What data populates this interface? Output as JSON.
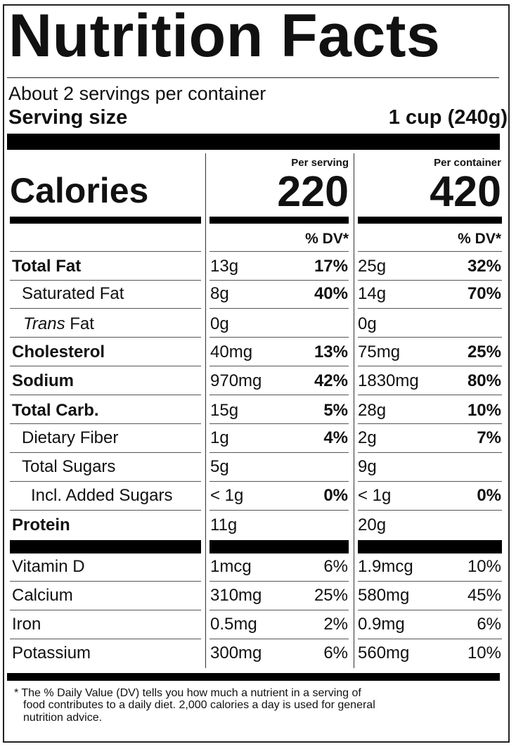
{
  "title": "Nutrition Facts",
  "servings_per_container": "About 2 servings per container",
  "serving_size_label": "Serving size",
  "serving_size_value": "1 cup (240g)",
  "calories_label": "Calories",
  "per_serving_label": "Per serving",
  "per_container_label": "Per container",
  "calories_per_serving": "220",
  "calories_per_container": "420",
  "dv_header": "% DV*",
  "nutrients": [
    {
      "name": "Total Fat",
      "bold": true,
      "serving_amt": "13g",
      "serving_dv": "17%",
      "container_amt": "25g",
      "container_dv": "32%"
    },
    {
      "name": "Saturated Fat",
      "serving_amt": "8g",
      "serving_dv": "40%",
      "container_amt": "14g",
      "container_dv": "70%"
    },
    {
      "name_italic": "Trans",
      "name_rest": " Fat",
      "serving_amt": "0g",
      "serving_dv": "",
      "container_amt": "0g",
      "container_dv": ""
    },
    {
      "name": "Cholesterol",
      "bold": true,
      "serving_amt": "40mg",
      "serving_dv": "13%",
      "container_amt": "75mg",
      "container_dv": "25%"
    },
    {
      "name": "Sodium",
      "bold": true,
      "serving_amt": "970mg",
      "serving_dv": "42%",
      "container_amt": "1830mg",
      "container_dv": "80%"
    },
    {
      "name": "Total Carb.",
      "bold": true,
      "serving_amt": "15g",
      "serving_dv": "5%",
      "container_amt": "28g",
      "container_dv": "10%"
    },
    {
      "name": "Dietary Fiber",
      "serving_amt": "1g",
      "serving_dv": "4%",
      "container_amt": "2g",
      "container_dv": "7%"
    },
    {
      "name": "Total Sugars",
      "serving_amt": "5g",
      "serving_dv": "",
      "container_amt": "9g",
      "container_dv": ""
    },
    {
      "name": "Incl. Added Sugars",
      "serving_amt": "< 1g",
      "serving_dv": "0%",
      "container_amt": "< 1g",
      "container_dv": "0%"
    },
    {
      "name": "Protein",
      "bold": true,
      "serving_amt": "11g",
      "serving_dv": "",
      "container_amt": "20g",
      "container_dv": ""
    }
  ],
  "vitamins": [
    {
      "name": "Vitamin D",
      "serving_amt": "1mcg",
      "serving_dv": "6%",
      "container_amt": "1.9mcg",
      "container_dv": "10%"
    },
    {
      "name": "Calcium",
      "serving_amt": "310mg",
      "serving_dv": "25%",
      "container_amt": "580mg",
      "container_dv": "45%"
    },
    {
      "name": "Iron",
      "serving_amt": "0.5mg",
      "serving_dv": "2%",
      "container_amt": "0.9mg",
      "container_dv": "6%"
    },
    {
      "name": "Potassium",
      "serving_amt": "300mg",
      "serving_dv": "6%",
      "container_amt": "560mg",
      "container_dv": "10%"
    }
  ],
  "footnote_lines": [
    "* The % Daily Value (DV) tells you how much a nutrient in a serving of",
    "food contributes to a daily diet. 2,000 calories a day is used for general",
    "nutrition advice."
  ]
}
